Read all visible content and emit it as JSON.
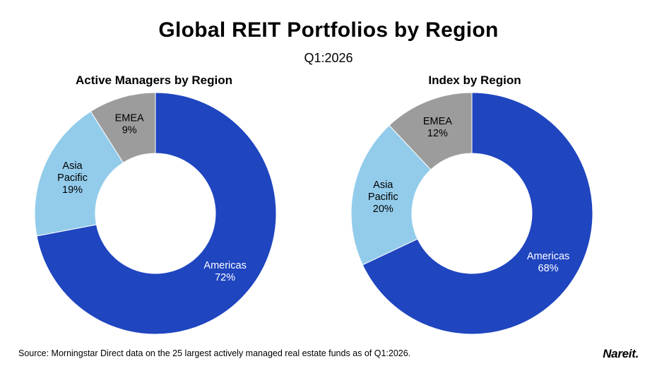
{
  "title": "Global REIT Portfolios by Region",
  "subtitle": "Q1:2026",
  "source": "Source: Morningstar Direct data on the 25 largest actively managed real estate funds as of Q1:2026.",
  "logo": "Nareit.",
  "colors": {
    "Americas": "#1F45BF",
    "Asia Pacific": "#93CCEB",
    "EMEA": "#9C9C9C"
  },
  "chart_data": [
    {
      "type": "pie",
      "title": "Active Managers by Region",
      "categories": [
        "Americas",
        "Asia Pacific",
        "EMEA"
      ],
      "labels": [
        [
          "Americas",
          "72%"
        ],
        [
          "Asia",
          "Pacific",
          "19%"
        ],
        [
          "EMEA",
          "9%"
        ]
      ],
      "values": [
        72,
        19,
        9
      ]
    },
    {
      "type": "pie",
      "title": "Index by Region",
      "categories": [
        "Americas",
        "Asia Pacific",
        "EMEA"
      ],
      "labels": [
        [
          "Americas",
          "68%"
        ],
        [
          "Asia",
          "Pacific",
          "20%"
        ],
        [
          "EMEA",
          "12%"
        ]
      ],
      "values": [
        68,
        20,
        12
      ]
    }
  ]
}
